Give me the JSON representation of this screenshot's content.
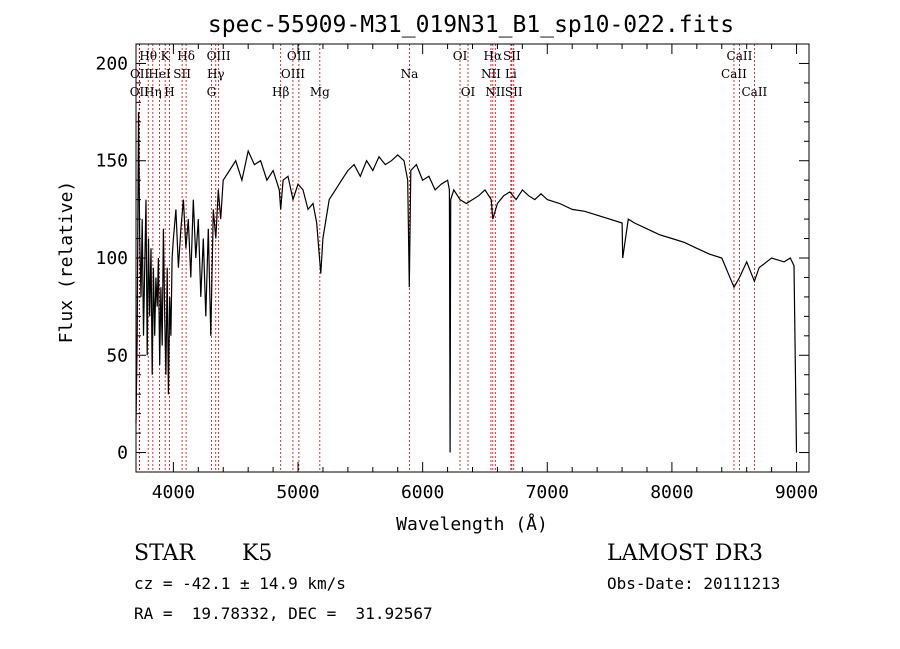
{
  "chart_data": {
    "type": "line",
    "title": "spec-55909-M31_019N31_B1_sp10-022.fits",
    "xlabel": "Wavelength (Å)",
    "ylabel": "Flux (relative)",
    "xlim": [
      3700,
      9100
    ],
    "ylim": [
      -10,
      210
    ],
    "xticks": [
      4000,
      5000,
      6000,
      7000,
      8000,
      9000
    ],
    "yticks": [
      0,
      50,
      100,
      150,
      200
    ],
    "series": [
      {
        "name": "flux",
        "x": [
          3700,
          3710,
          3720,
          3730,
          3740,
          3750,
          3760,
          3770,
          3780,
          3790,
          3800,
          3810,
          3820,
          3830,
          3840,
          3850,
          3860,
          3870,
          3880,
          3890,
          3900,
          3910,
          3920,
          3930,
          3940,
          3950,
          3960,
          3970,
          3980,
          3990,
          4000,
          4020,
          4040,
          4060,
          4080,
          4100,
          4120,
          4140,
          4160,
          4180,
          4200,
          4220,
          4240,
          4260,
          4280,
          4300,
          4320,
          4340,
          4360,
          4380,
          4400,
          4450,
          4500,
          4550,
          4600,
          4650,
          4700,
          4750,
          4800,
          4850,
          4861,
          4880,
          4920,
          4960,
          5000,
          5040,
          5080,
          5120,
          5150,
          5172,
          5183,
          5200,
          5250,
          5300,
          5350,
          5400,
          5450,
          5500,
          5550,
          5600,
          5650,
          5700,
          5750,
          5800,
          5850,
          5880,
          5893,
          5905,
          5950,
          6000,
          6050,
          6100,
          6150,
          6200,
          6215,
          6220,
          6225,
          6250,
          6300,
          6350,
          6400,
          6450,
          6500,
          6550,
          6563,
          6600,
          6650,
          6700,
          6750,
          6800,
          6850,
          6900,
          6950,
          7000,
          7100,
          7200,
          7300,
          7400,
          7500,
          7600,
          7605,
          7650,
          7700,
          7800,
          7900,
          8000,
          8100,
          8200,
          8300,
          8400,
          8498,
          8542,
          8600,
          8662,
          8700,
          8800,
          8900,
          8950,
          8980,
          9000
        ],
        "values": [
          15,
          60,
          175,
          110,
          80,
          120,
          60,
          95,
          130,
          50,
          110,
          70,
          105,
          40,
          95,
          60,
          90,
          75,
          100,
          45,
          85,
          55,
          115,
          70,
          40,
          95,
          30,
          80,
          60,
          100,
          110,
          125,
          95,
          115,
          130,
          105,
          120,
          90,
          130,
          100,
          120,
          80,
          110,
          70,
          115,
          60,
          125,
          110,
          135,
          120,
          140,
          145,
          150,
          140,
          155,
          148,
          150,
          140,
          145,
          135,
          125,
          140,
          142,
          130,
          138,
          135,
          125,
          128,
          118,
          100,
          92,
          110,
          130,
          135,
          140,
          145,
          148,
          142,
          150,
          145,
          152,
          148,
          150,
          153,
          150,
          140,
          85,
          145,
          148,
          140,
          142,
          135,
          138,
          140,
          135,
          0,
          130,
          135,
          130,
          128,
          130,
          132,
          135,
          130,
          120,
          128,
          132,
          134,
          130,
          135,
          132,
          130,
          133,
          130,
          128,
          125,
          124,
          122,
          120,
          118,
          100,
          120,
          118,
          115,
          112,
          110,
          108,
          105,
          102,
          100,
          85,
          90,
          98,
          88,
          95,
          100,
          98,
          100,
          96,
          0
        ]
      }
    ],
    "lines": [
      {
        "name": "OII",
        "wave": 3727,
        "row": 2
      },
      {
        "name": "OII",
        "wave": 3729,
        "row": 1
      },
      {
        "name": "Hθ",
        "wave": 3798,
        "row": 0
      },
      {
        "name": "Hη",
        "wave": 3835,
        "row": 2
      },
      {
        "name": "HeI",
        "wave": 3889,
        "row": 1
      },
      {
        "name": "K",
        "wave": 3934,
        "row": 0
      },
      {
        "name": "H",
        "wave": 3969,
        "row": 2
      },
      {
        "name": "SII",
        "wave": 4070,
        "row": 1
      },
      {
        "name": "Hδ",
        "wave": 4102,
        "row": 0
      },
      {
        "name": "G",
        "wave": 4305,
        "row": 2
      },
      {
        "name": "Hγ",
        "wave": 4340,
        "row": 1
      },
      {
        "name": "OIII",
        "wave": 4363,
        "row": 0
      },
      {
        "name": "Hβ",
        "wave": 4861,
        "row": 2
      },
      {
        "name": "OIII",
        "wave": 4959,
        "row": 1
      },
      {
        "name": "OIII",
        "wave": 5007,
        "row": 0
      },
      {
        "name": "Mg",
        "wave": 5175,
        "row": 2
      },
      {
        "name": "Na",
        "wave": 5894,
        "row": 1
      },
      {
        "name": "OI",
        "wave": 6300,
        "row": 0
      },
      {
        "name": "OI",
        "wave": 6364,
        "row": 2
      },
      {
        "name": "NII",
        "wave": 6548,
        "row": 1
      },
      {
        "name": "NII",
        "wave": 6583,
        "row": 2
      },
      {
        "name": "Hα",
        "wave": 6563,
        "row": 0
      },
      {
        "name": "Li",
        "wave": 6708,
        "row": 1
      },
      {
        "name": "SII",
        "wave": 6716,
        "row": 0
      },
      {
        "name": "SII",
        "wave": 6731,
        "row": 2
      },
      {
        "name": "CaII",
        "wave": 8498,
        "row": 1
      },
      {
        "name": "CaII",
        "wave": 8542,
        "row": 0
      },
      {
        "name": "CaII",
        "wave": 8662,
        "row": 2
      }
    ]
  },
  "info": {
    "object_class": "STAR",
    "subclass": "K5",
    "survey": "LAMOST DR3",
    "cz_line": "cz = -42.1 ± 14.9 km/s",
    "obs_date_line": "Obs-Date: 20111213",
    "coord_line": "RA =  19.78332, DEC =  31.92567"
  },
  "colors": {
    "foreground": "#000000",
    "line_marker": "#cc0000",
    "background": "#ffffff"
  }
}
